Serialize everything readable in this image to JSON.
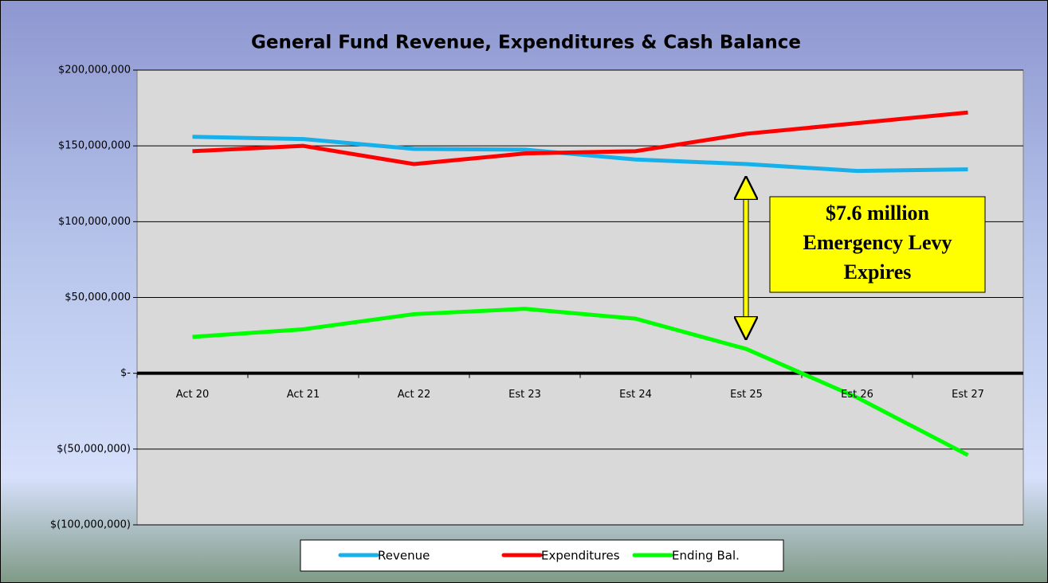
{
  "chart_data": {
    "type": "line",
    "title": "General Fund Revenue, Expenditures & Cash Balance",
    "categories": [
      "Act 20",
      "Act 21",
      "Act 22",
      "Est 23",
      "Est 24",
      "Est 25",
      "Est 26",
      "Est 27"
    ],
    "series": [
      {
        "name": "Revenue",
        "color": "#17b0ea",
        "values": [
          156000000,
          154500000,
          148000000,
          147500000,
          141000000,
          138000000,
          133500000,
          134500000
        ]
      },
      {
        "name": "Expenditures",
        "color": "#ff0000",
        "values": [
          146500000,
          150000000,
          138000000,
          145000000,
          146500000,
          158000000,
          165000000,
          172000000
        ]
      },
      {
        "name": "Ending Bal.",
        "color": "#00ff00",
        "values": [
          24000000,
          29000000,
          39000000,
          42500000,
          36000000,
          16000000,
          -16000000,
          -54000000
        ]
      }
    ],
    "ylim": [
      -100000000,
      200000000
    ],
    "yticks": [
      {
        "value": -100000000,
        "label": "$(100,000,000)"
      },
      {
        "value": -50000000,
        "label": "$(50,000,000)"
      },
      {
        "value": 0,
        "label": "$-"
      },
      {
        "value": 50000000,
        "label": "$50,000,000"
      },
      {
        "value": 100000000,
        "label": "$100,000,000"
      },
      {
        "value": 150000000,
        "label": "$150,000,000"
      },
      {
        "value": 200000000,
        "label": "$200,000,000"
      }
    ],
    "grid": true,
    "legend": "bottom",
    "annotation": [
      "$7.6 million",
      "Emergency Levy",
      "Expires"
    ]
  }
}
